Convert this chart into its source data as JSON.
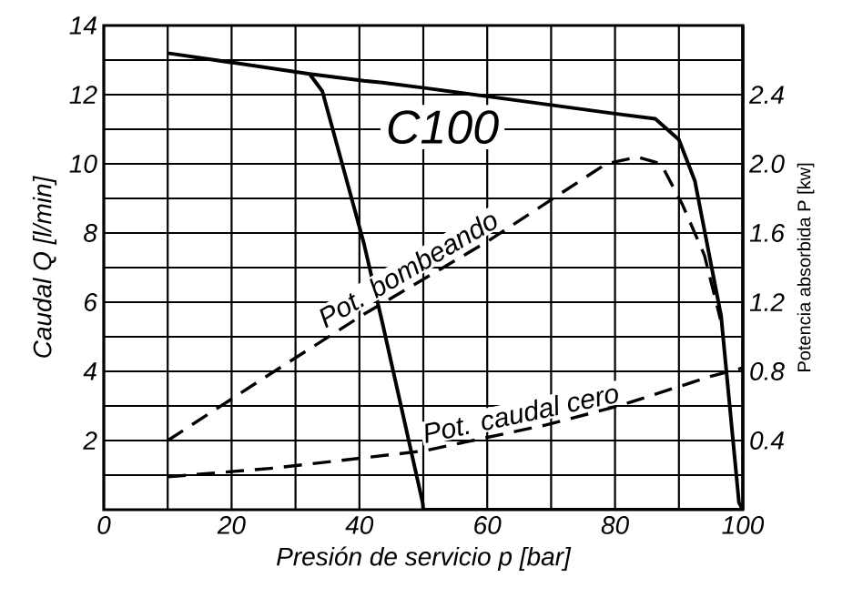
{
  "chart_data": {
    "type": "line",
    "xlabel": "Presión de servicio p [bar]",
    "ylabel": "Caudal Q [l/min]",
    "y2label": "Potencia absorbida P [kw]",
    "annotations": [
      "C100"
    ],
    "xlim": [
      0,
      100
    ],
    "xticks": [
      0,
      {
        "value": 10,
        "label": null
      },
      20,
      {
        "value": 30,
        "label": null
      },
      40,
      {
        "value": 50,
        "label": null
      },
      60,
      {
        "value": 70,
        "label": null
      },
      80,
      {
        "value": 90,
        "label": null
      },
      100
    ],
    "ylim": [
      0,
      14
    ],
    "yticks": [
      {
        "value": 0,
        "label": null
      },
      {
        "value": 1,
        "label": null
      },
      2,
      {
        "value": 3,
        "label": null
      },
      4,
      {
        "value": 5,
        "label": null
      },
      6,
      {
        "value": 7,
        "label": null
      },
      8,
      {
        "value": 9,
        "label": null
      },
      10,
      {
        "value": 11,
        "label": null
      },
      12,
      {
        "value": 13,
        "label": null
      },
      14
    ],
    "y2lim": [
      0,
      2.8
    ],
    "y2ticks": [
      0.4,
      0.8,
      1.2,
      1.6,
      {
        "value": 2,
        "label": "2.0"
      },
      2.4
    ],
    "grid": true,
    "series": [
      {
        "color": "#000000",
        "line_style": "solid",
        "x": [
          10,
          32.2,
          34.2,
          40.7,
          43.6,
          49.9,
          60,
          70,
          80,
          86.3,
          90,
          92.5,
          96.6,
          99.4,
          100
        ],
        "values": [
          13.2,
          12.6,
          12.55,
          12.4,
          12.35,
          12.2,
          11.95,
          11.7,
          11.45,
          11.3,
          10.7,
          9.5,
          5.6,
          0.2,
          0
        ]
      },
      {
        "color": "#000000",
        "line_style": "solid",
        "x": [
          32.2,
          34.2,
          40.7,
          43.6,
          49.9,
          50,
          60,
          70,
          80,
          86.3,
          90,
          92.5,
          96.6,
          99.4,
          100
        ],
        "values": [
          12.6,
          12.1,
          7.7,
          5.4,
          0.2,
          0,
          0,
          0,
          0,
          0,
          0,
          0,
          0,
          0,
          0
        ]
      },
      {
        "name": "Pot. bombeando",
        "axis": "y2",
        "color": "#000000",
        "line_style": "dashed",
        "x": [
          10,
          25,
          40.7,
          60,
          78.6,
          83.5,
          87.2,
          90.6,
          94,
          96.5
        ],
        "values": [
          0.4,
          0.76,
          1.13,
          1.55,
          2.0,
          2.04,
          2.0,
          1.76,
          1.47,
          1.1
        ]
      },
      {
        "name": "Pot. caudal cero",
        "axis": "y2",
        "color": "#000000",
        "line_style": "dashed",
        "x": [
          10,
          26.5,
          50.1,
          69.2,
          80.6,
          94.9,
          100
        ],
        "values": [
          0.19,
          0.24,
          0.34,
          0.49,
          0.6,
          0.77,
          0.82
        ]
      }
    ]
  }
}
